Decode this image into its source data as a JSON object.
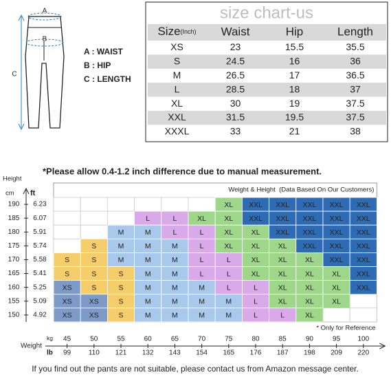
{
  "diagram_labels": {
    "a": "A",
    "b": "B",
    "c": "C"
  },
  "legend": {
    "a": "A : WAIST",
    "b": "B : HIP",
    "c": "C : LENGTH"
  },
  "size_table": {
    "title": "size chart-us",
    "header": {
      "size": "Size",
      "unit": "(Inch)",
      "columns": [
        "Waist",
        "Hip",
        "Length"
      ]
    },
    "rows": [
      [
        "XS",
        23,
        15.5,
        35.5
      ],
      [
        "S",
        24.5,
        16,
        36
      ],
      [
        "M",
        26.5,
        17,
        36.5
      ],
      [
        "L",
        28.5,
        18,
        37
      ],
      [
        "XL",
        30,
        19,
        37.5
      ],
      [
        "XXL",
        31.5,
        19.5,
        37.5
      ],
      [
        "XXXL",
        33,
        21,
        38
      ]
    ]
  },
  "note": "*Please allow 0.4-1.2 inch difference due to manual measurement.",
  "size_grid": {
    "caption": "Weight & Height  (Data Based On Our Customers)",
    "footnote": "* Only for Reference",
    "height_label": "Height",
    "cm_label": "cm",
    "ft_label": "ft",
    "weight_label": "Weight",
    "kg_label": "kg",
    "lb_label": "lb",
    "cm": [
      190,
      185,
      180,
      175,
      170,
      165,
      160,
      155,
      150
    ],
    "ft": [
      6.23,
      6.07,
      5.91,
      5.74,
      5.58,
      5.41,
      5.25,
      5.09,
      4.92
    ],
    "kg": [
      45,
      50,
      55,
      60,
      65,
      70,
      75,
      80,
      85,
      90,
      95,
      100
    ],
    "lb": [
      99,
      110,
      121,
      132,
      143,
      154,
      165,
      176,
      187,
      198,
      209,
      220
    ],
    "rows": [
      [
        null,
        null,
        null,
        null,
        null,
        null,
        "XL",
        "XXL",
        "XXL",
        "XXL",
        "XXL",
        "XXL"
      ],
      [
        null,
        null,
        null,
        "L",
        "L",
        "XL",
        "XL",
        "XXL",
        "XXL",
        "XXL",
        "XXL",
        "XXL"
      ],
      [
        null,
        null,
        "M",
        "M",
        "L",
        "L",
        "XL",
        "XL",
        "XXL",
        "XXL",
        "XXL",
        "XXL"
      ],
      [
        null,
        "S",
        "M",
        "M",
        "M",
        "L",
        "XL",
        "XL",
        "XL",
        "XXL",
        "XXL",
        "XXL"
      ],
      [
        "S",
        "S",
        "M",
        "M",
        "M",
        "L",
        "L",
        "XL",
        "XL",
        "XL",
        "XXL",
        "XXL"
      ],
      [
        "S",
        "S",
        "S",
        "M",
        "M",
        "L",
        "L",
        "XL",
        "XL",
        "XL",
        "XL",
        "XXL"
      ],
      [
        "XS",
        "S",
        "S",
        "M",
        "M",
        "M",
        "L",
        "L",
        "XL",
        "XL",
        "XL",
        "XXL"
      ],
      [
        "XS",
        "XS",
        "S",
        "M",
        "M",
        "M",
        "M",
        "L",
        "XL",
        "XL",
        "XL",
        null
      ],
      [
        "XS",
        "XS",
        "S",
        "M",
        "M",
        "M",
        "M",
        "L",
        "L",
        "XL",
        null,
        null
      ]
    ],
    "colors": {
      "XS": "#7e9bc8",
      "S": "#f6cd6b",
      "M": "#a8c8ec",
      "L": "#d9a9ea",
      "XL": "#9ed78a",
      "XXL": "#2d6bb4"
    }
  },
  "footer": "If you find out the pants are not suitable, please contact us from Amazon message center."
}
